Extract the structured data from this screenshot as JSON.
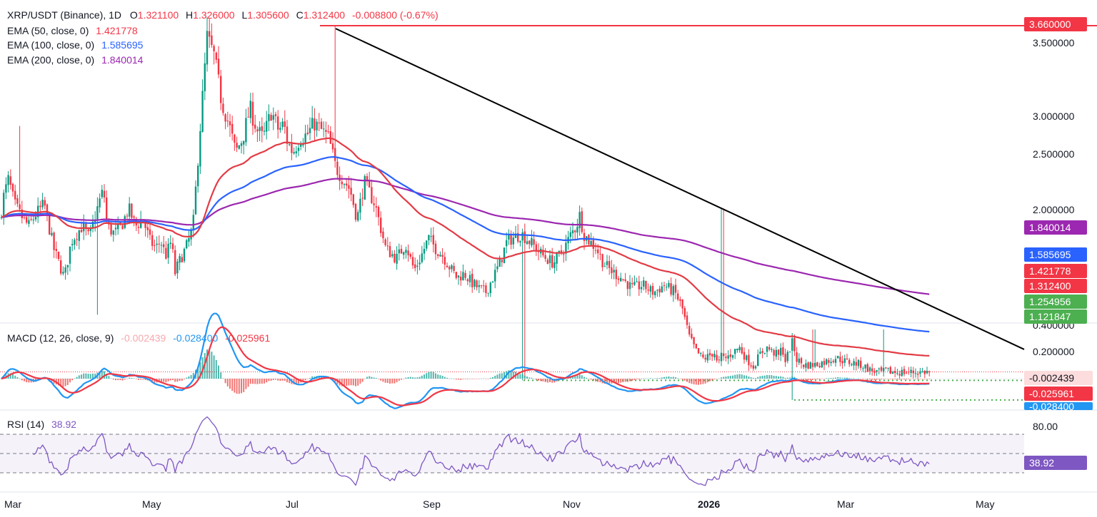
{
  "colors": {
    "ema50": "#e23b45",
    "ema100": "#2962ff",
    "ema200": "#9c27b0",
    "up": "#089981",
    "down": "#f23645",
    "support": "#4caf50",
    "macd_line": "#2196f3",
    "signal_line": "#f23645",
    "rsi": "#7e57c2",
    "resistance": "#f23645",
    "trendline": "#000000"
  },
  "price_panel": {
    "symbol": "XRP/USDT (Binance), 1D",
    "open_label": "O",
    "open": "1.321100",
    "high_label": "H",
    "high": "1.326000",
    "low_label": "L",
    "low": "1.305600",
    "close_label": "C",
    "close": "1.312400",
    "change": "-0.008800 (-0.67%)",
    "ema50_label": "EMA (50, close, 0)",
    "ema50_value": "1.421778",
    "ema100_label": "EMA (100, close, 0)",
    "ema100_value": "1.585695",
    "ema200_label": "EMA (200, close, 0)",
    "ema200_value": "1.840014",
    "y_ticks": [
      "3.500000",
      "3.000000",
      "2.500000",
      "2.000000"
    ],
    "badges": {
      "resistance": "3.660000",
      "ema200": "1.840014",
      "ema100": "1.585695",
      "ema50": "1.421778",
      "last": "1.312400",
      "support1": "1.254956",
      "support2": "1.121847"
    }
  },
  "macd_panel": {
    "label": "MACD (12, 26, close, 9)",
    "hist_value": "-0.002439",
    "macd_value": "-0.028400",
    "signal_value": "-0.025961",
    "y_ticks": [
      "0.400000",
      "0.200000"
    ],
    "badges": {
      "hist": "-0.002439",
      "signal": "-0.025961",
      "macd": "-0.028400"
    }
  },
  "rsi_panel": {
    "label": "RSI (14)",
    "value": "38.92",
    "y_ticks": [
      "80.00"
    ],
    "badge": "38.92"
  },
  "x_axis": {
    "labels": [
      "Mar",
      "May",
      "Jul",
      "Sep",
      "Nov",
      "2026",
      "Mar",
      "May"
    ]
  },
  "chart_data": {
    "type": "candlestick",
    "title": "XRP/USDT (Binance), 1D",
    "ylim": [
      1.0,
      3.75
    ],
    "key_levels": {
      "resistance": 3.66,
      "support_1": 1.254956,
      "support_2": 1.121847,
      "last_close": 1.3124
    },
    "indicators": {
      "ema50": 1.421778,
      "ema100": 1.585695,
      "ema200": 1.840014,
      "macd": -0.0284,
      "signal": -0.025961,
      "histogram": -0.002439,
      "rsi14": 38.92
    },
    "price_anchors": {
      "x": [
        0,
        5,
        12,
        20,
        28,
        40,
        50,
        62,
        75,
        90,
        100,
        115,
        125,
        135,
        140,
        145,
        150,
        160,
        170,
        180,
        190,
        200,
        210,
        218,
        225,
        232,
        240,
        245,
        250,
        260,
        270,
        280,
        290,
        300,
        310,
        320,
        330,
        340,
        350,
        360,
        368,
        372,
        380,
        390,
        398,
        400,
        410,
        420,
        430,
        440,
        450,
        460,
        470,
        480,
        490,
        500,
        510,
        525,
        540,
        555,
        568,
        580,
        590,
        600,
        610,
        620,
        630,
        640,
        650,
        660,
        670,
        680,
        690,
        700,
        710,
        730,
        745,
        760,
        775,
        790,
        800,
        807,
        812,
        817,
        825,
        835,
        845,
        855,
        870,
        885,
        900,
        915,
        930,
        945,
        955,
        965,
        975,
        985,
        993,
        1000,
        1005,
        1010,
        1015,
        1025,
        1035,
        1045,
        1055,
        1065,
        1075,
        1080,
        1085,
        1090,
        1095,
        1100,
        1105,
        1110,
        1115,
        1125,
        1140,
        1155,
        1170,
        1185,
        1200,
        1210,
        1220,
        1230,
        1235,
        1240,
        1250,
        1260,
        1270,
        1280,
        1290,
        1303
      ],
      "y": [
        2.35,
        2.5,
        2.62,
        2.45,
        2.38,
        2.3,
        2.38,
        2.45,
        2.15,
        1.95,
        2.2,
        2.3,
        2.22,
        2.4,
        2.48,
        2.55,
        2.3,
        2.25,
        2.3,
        2.42,
        2.3,
        2.35,
        2.2,
        2.15,
        2.2,
        2.1,
        2.2,
        1.98,
        2.05,
        2.15,
        2.28,
        2.95,
        3.58,
        3.45,
        3.15,
        3.0,
        2.8,
        2.9,
        3.1,
        2.95,
        2.9,
        2.95,
        3.08,
        2.95,
        3.0,
        2.9,
        2.8,
        2.9,
        2.92,
        3.0,
        2.95,
        2.9,
        2.7,
        2.62,
        2.55,
        2.35,
        2.6,
        2.45,
        2.15,
        2.08,
        2.18,
        2.0,
        2.1,
        2.22,
        2.15,
        2.1,
        2.02,
        1.95,
        1.98,
        1.92,
        1.88,
        1.85,
        1.95,
        2.05,
        2.2,
        2.25,
        2.18,
        2.1,
        2.05,
        2.15,
        2.25,
        2.3,
        2.38,
        2.25,
        2.2,
        2.15,
        2.05,
        2.0,
        1.95,
        1.88,
        1.9,
        1.85,
        1.9,
        1.85,
        1.75,
        1.55,
        1.45,
        1.4,
        1.42,
        1.45,
        1.35,
        1.42,
        1.4,
        1.44,
        1.48,
        1.4,
        1.35,
        1.44,
        1.48,
        1.45,
        1.44,
        1.42,
        1.48,
        1.38,
        1.46,
        1.52,
        1.4,
        1.36,
        1.36,
        1.38,
        1.41,
        1.38,
        1.37,
        1.35,
        1.32,
        1.31,
        1.31,
        1.32,
        1.31,
        1.31,
        1.31,
        1.31,
        1.31,
        1.3124
      ]
    }
  }
}
